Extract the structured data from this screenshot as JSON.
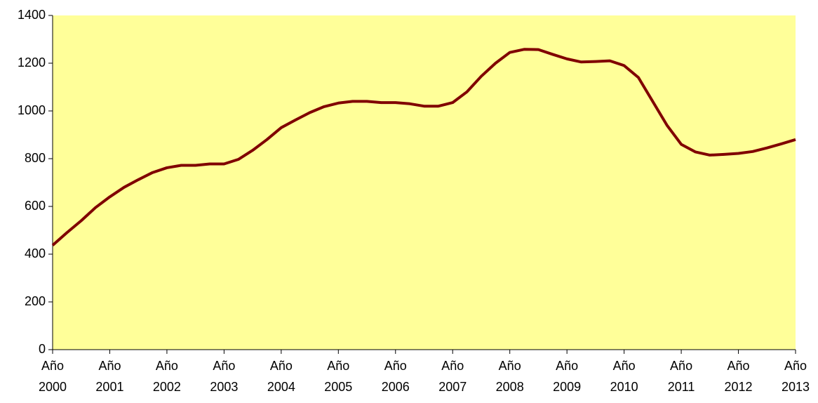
{
  "chart_data": {
    "type": "line",
    "categories": [
      "Año 2000",
      null,
      null,
      null,
      "Año 2001",
      null,
      null,
      null,
      "Año 2002",
      null,
      null,
      null,
      "Año 2003",
      null,
      null,
      null,
      "Año 2004",
      null,
      null,
      null,
      "Año 2005",
      null,
      null,
      null,
      "Año 2006",
      null,
      null,
      null,
      "Año 2007",
      null,
      null,
      null,
      "Año 2008",
      null,
      null,
      null,
      "Año 2009",
      null,
      null,
      null,
      "Año 2010",
      null,
      null,
      null,
      "Año 2011",
      null,
      null,
      null,
      "Año 2012",
      null,
      null,
      null,
      "Año 2013"
    ],
    "series": [
      {
        "color": "#800000",
        "values": [
          437,
          490,
          540,
          595,
          640,
          680,
          712,
          742,
          762,
          772,
          772,
          778,
          778,
          797,
          835,
          880,
          930,
          962,
          993,
          1018,
          1033,
          1040,
          1040,
          1035,
          1035,
          1030,
          1020,
          1020,
          1035,
          1080,
          1145,
          1200,
          1245,
          1258,
          1257,
          1237,
          1218,
          1205,
          1207,
          1210,
          1190,
          1140,
          1040,
          940,
          860,
          828,
          815,
          818,
          822,
          830,
          845,
          862,
          880
        ]
      }
    ],
    "ylim": [
      0,
      1400
    ],
    "yticks": [
      0,
      200,
      400,
      600,
      800,
      1000,
      1200,
      1400
    ],
    "plot_background": "#ffff99"
  }
}
